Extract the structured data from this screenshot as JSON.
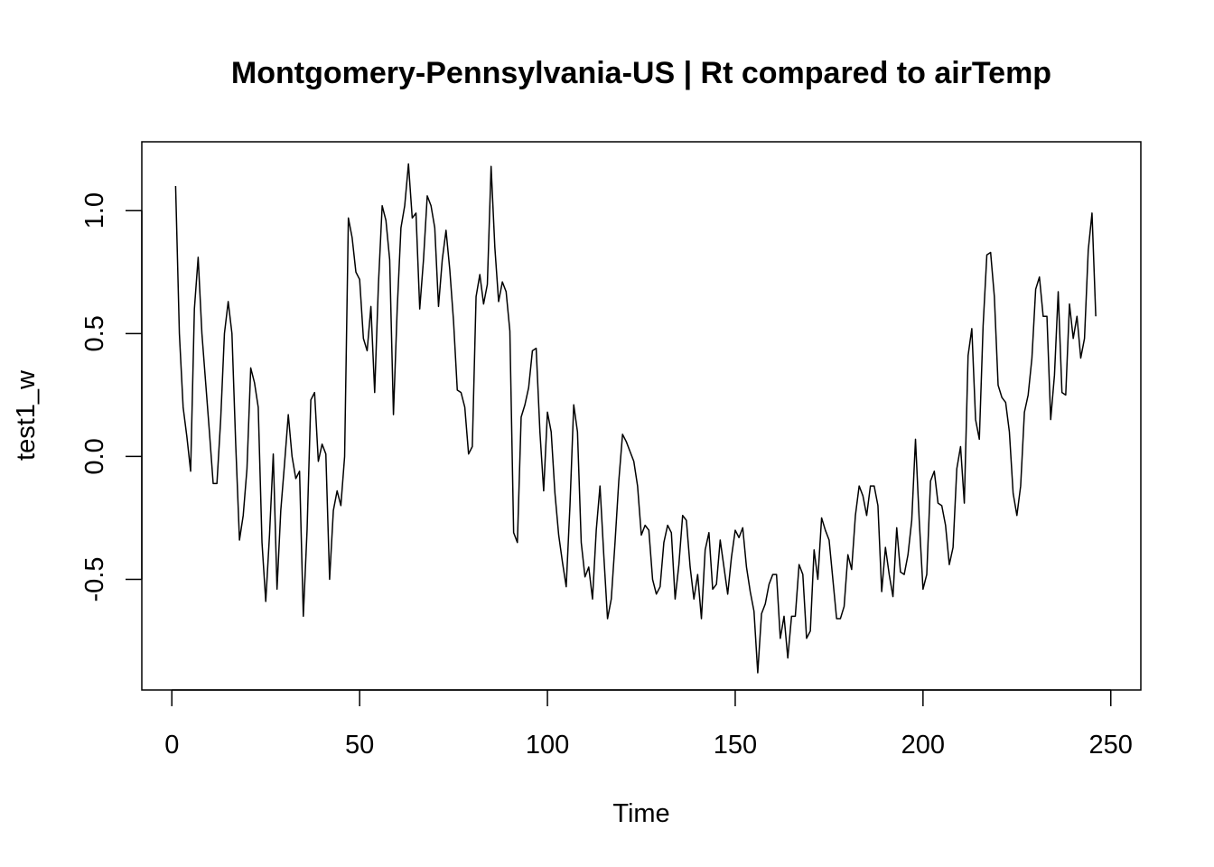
{
  "chart_data": {
    "type": "line",
    "title": "Montgomery-Pennsylvania-US | Rt compared to airTemp",
    "xlabel": "Time",
    "ylabel": "test1_w",
    "xlim": [
      -8,
      258
    ],
    "ylim": [
      -0.95,
      1.28
    ],
    "x_ticks": [
      0,
      50,
      100,
      150,
      200,
      250
    ],
    "x_tick_labels": [
      "0",
      "50",
      "100",
      "150",
      "200",
      "250"
    ],
    "y_ticks": [
      -0.5,
      0.0,
      0.5,
      1.0
    ],
    "y_tick_labels": [
      "-0.5",
      "0.0",
      "0.5",
      "1.0"
    ],
    "grid": false,
    "legend": "none",
    "line_color": "#000000",
    "x_start": 1,
    "series": [
      {
        "values": [
          1.1,
          0.5,
          0.2,
          0.08,
          -0.06,
          0.6,
          0.81,
          0.5,
          0.3,
          0.1,
          -0.11,
          -0.11,
          0.15,
          0.5,
          0.63,
          0.5,
          0.05,
          -0.34,
          -0.24,
          -0.05,
          0.36,
          0.3,
          0.2,
          -0.35,
          -0.59,
          -0.32,
          0.01,
          -0.54,
          -0.22,
          -0.03,
          0.17,
          0.0,
          -0.09,
          -0.06,
          -0.65,
          -0.3,
          0.23,
          0.26,
          -0.02,
          0.05,
          0.01,
          -0.5,
          -0.22,
          -0.14,
          -0.2,
          0.0,
          0.97,
          0.89,
          0.75,
          0.72,
          0.48,
          0.43,
          0.61,
          0.26,
          0.7,
          1.02,
          0.96,
          0.8,
          0.17,
          0.6,
          0.93,
          1.02,
          1.19,
          0.97,
          0.99,
          0.6,
          0.8,
          1.06,
          1.02,
          0.93,
          0.61,
          0.8,
          0.92,
          0.76,
          0.55,
          0.27,
          0.26,
          0.2,
          0.01,
          0.04,
          0.65,
          0.74,
          0.62,
          0.7,
          1.18,
          0.85,
          0.63,
          0.71,
          0.67,
          0.51,
          -0.31,
          -0.35,
          0.16,
          0.21,
          0.28,
          0.43,
          0.44,
          0.1,
          -0.14,
          0.18,
          0.1,
          -0.15,
          -0.32,
          -0.43,
          -0.53,
          -0.2,
          0.21,
          0.1,
          -0.35,
          -0.49,
          -0.45,
          -0.58,
          -0.3,
          -0.12,
          -0.4,
          -0.66,
          -0.58,
          -0.35,
          -0.1,
          0.09,
          0.06,
          0.02,
          -0.02,
          -0.12,
          -0.32,
          -0.28,
          -0.3,
          -0.5,
          -0.56,
          -0.53,
          -0.35,
          -0.28,
          -0.31,
          -0.58,
          -0.44,
          -0.24,
          -0.26,
          -0.45,
          -0.58,
          -0.48,
          -0.66,
          -0.38,
          -0.31,
          -0.54,
          -0.52,
          -0.34,
          -0.45,
          -0.56,
          -0.41,
          -0.3,
          -0.33,
          -0.29,
          -0.45,
          -0.55,
          -0.63,
          -0.88,
          -0.64,
          -0.6,
          -0.52,
          -0.48,
          -0.48,
          -0.74,
          -0.65,
          -0.82,
          -0.65,
          -0.65,
          -0.44,
          -0.48,
          -0.74,
          -0.71,
          -0.38,
          -0.5,
          -0.25,
          -0.3,
          -0.34,
          -0.5,
          -0.66,
          -0.66,
          -0.61,
          -0.4,
          -0.46,
          -0.24,
          -0.12,
          -0.16,
          -0.24,
          -0.12,
          -0.12,
          -0.2,
          -0.55,
          -0.37,
          -0.48,
          -0.57,
          -0.29,
          -0.47,
          -0.48,
          -0.4,
          -0.26,
          0.07,
          -0.26,
          -0.54,
          -0.48,
          -0.1,
          -0.06,
          -0.19,
          -0.2,
          -0.28,
          -0.44,
          -0.37,
          -0.05,
          0.04,
          -0.19,
          0.41,
          0.52,
          0.15,
          0.07,
          0.53,
          0.82,
          0.83,
          0.65,
          0.29,
          0.24,
          0.22,
          0.1,
          -0.15,
          -0.24,
          -0.12,
          0.18,
          0.25,
          0.4,
          0.68,
          0.73,
          0.57,
          0.57,
          0.15,
          0.33,
          0.67,
          0.26,
          0.25,
          0.62,
          0.48,
          0.57,
          0.4,
          0.48,
          0.84,
          0.99,
          0.57
        ]
      }
    ]
  }
}
